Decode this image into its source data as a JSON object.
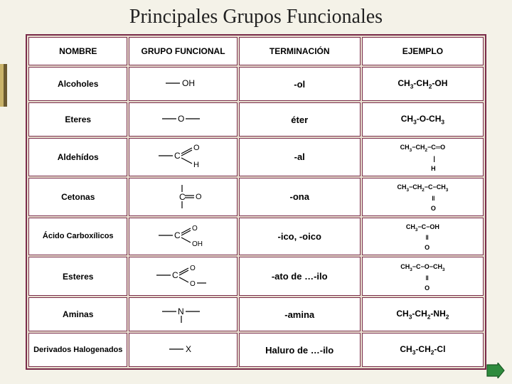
{
  "title": "Principales Grupos Funcionales",
  "colors": {
    "border": "#7a2c4a",
    "bg": "#f4f2e8",
    "cell_bg": "#ffffff",
    "table_bg": "#e8e0d0",
    "accent_light": "#c9b36a",
    "accent_dark": "#6b5a30",
    "nav_green": "#2e8b3d",
    "nav_border": "#1a5a24"
  },
  "headers": {
    "name": "NOMBRE",
    "group": "GRUPO FUNCIONAL",
    "term": "TERMINACIÓN",
    "example": "EJEMPLO"
  },
  "rows": [
    {
      "name": "Alcoholes",
      "func_svg": "oh",
      "term": "-ol",
      "example_html": "CH<span class='sub'>3</span>-CH<span class='sub'>2</span>-OH"
    },
    {
      "name": "Eteres",
      "func_svg": "ether",
      "term": "éter",
      "example_html": "CH<span class='sub'>3</span>-O-CH<span class='sub'>3</span>"
    },
    {
      "name": "Aldehídos",
      "func_svg": "aldehyde",
      "term": "-al",
      "example_html": "<span class='small'>CH<span class='sub'>3</span>−CH<span class='sub'>2</span>−C═O<br>&nbsp;&nbsp;&nbsp;&nbsp;&nbsp;&nbsp;&nbsp;&nbsp;&nbsp;&nbsp;&nbsp;&nbsp;&nbsp;|<br>&nbsp;&nbsp;&nbsp;&nbsp;&nbsp;&nbsp;&nbsp;&nbsp;&nbsp;&nbsp;&nbsp;&nbsp;H</span>"
    },
    {
      "name": "Cetonas",
      "func_svg": "ketone",
      "term": "-ona",
      "example_html": "<span class='small'>CH<span class='sub'>3</span>−CH<span class='sub'>2</span>−C−CH<span class='sub'>3</span><br>&nbsp;&nbsp;&nbsp;&nbsp;&nbsp;&nbsp;&nbsp;&nbsp;&nbsp;&nbsp;&nbsp;&nbsp;‖<br>&nbsp;&nbsp;&nbsp;&nbsp;&nbsp;&nbsp;&nbsp;&nbsp;&nbsp;&nbsp;&nbsp;&nbsp;O</span>"
    },
    {
      "name": "Ácido Carboxílicos",
      "func_svg": "acid",
      "term": "-ico, -oico",
      "example_html": "<span class='small'>CH<span class='sub'>3</span>−C−OH<br>&nbsp;&nbsp;&nbsp;&nbsp;&nbsp;‖<br>&nbsp;&nbsp;&nbsp;&nbsp;&nbsp;O</span>"
    },
    {
      "name": "Esteres",
      "func_svg": "ester",
      "term": "-ato de …-ilo",
      "example_html": "<span class='small'>CH<span class='sub'>3</span>−C−O−CH<span class='sub'>3</span><br>&nbsp;&nbsp;&nbsp;&nbsp;&nbsp;‖<br>&nbsp;&nbsp;&nbsp;&nbsp;&nbsp;O</span>"
    },
    {
      "name": "Aminas",
      "func_svg": "amine",
      "term": "-amina",
      "example_html": "CH<span class='sub'>3</span>-CH<span class='sub'>2</span>-NH<span class='sub'>2</span>"
    },
    {
      "name": "Derivados Halogenados",
      "func_svg": "halide",
      "term": "Haluro de …-ilo",
      "example_html": "CH<span class='sub'>3</span>-CH<span class='sub'>2</span>-Cl"
    }
  ],
  "func_svgs": {
    "oh": "<svg width='60' height='20'><line x1='5' y1='10' x2='25' y2='10' stroke='#000' stroke-width='1.2'/><text x='28' y='14' font-size='12' font-family='Arial'>OH</text></svg>",
    "ether": "<svg width='70' height='20'><line x1='5' y1='10' x2='25' y2='10' stroke='#000' stroke-width='1.2'/><text x='27' y='14' font-size='12' font-family='Arial'>O</text><line x1='38' y1='10' x2='58' y2='10' stroke='#000' stroke-width='1.2'/></svg>",
    "aldehyde": "<svg width='80' height='40'><line x1='5' y1='20' x2='25' y2='20' stroke='#000' stroke-width='1.2'/><text x='27' y='24' font-size='12' font-family='Arial'>C</text><line x1='37' y1='17' x2='52' y2='9' stroke='#000' stroke-width='1.2'/><line x1='37' y1='20' x2='52' y2='12' stroke='#000' stroke-width='1.2'/><text x='54' y='12' font-size='11' font-family='Arial'>O</text><line x1='37' y1='23' x2='52' y2='31' stroke='#000' stroke-width='1.2'/><text x='54' y='36' font-size='11' font-family='Arial'>H</text></svg>",
    "ketone": "<svg width='60' height='40'><line x1='28' y1='5' x2='28' y2='15' stroke='#000' stroke-width='1.2'/><text x='24' y='26' font-size='12' font-family='Arial'>C</text><line x1='32' y1='20' x2='45' y2='20' stroke='#000' stroke-width='1.2'/><line x1='32' y1='23' x2='45' y2='23' stroke='#000' stroke-width='1.2'/><text x='47' y='25' font-size='11' font-family='Arial'>O</text><line x1='28' y1='28' x2='28' y2='38' stroke='#000' stroke-width='1.2'/></svg>",
    "acid": "<svg width='80' height='40'><line x1='5' y1='20' x2='25' y2='20' stroke='#000' stroke-width='1.2'/><text x='27' y='24' font-size='12' font-family='Arial'>C</text><line x1='37' y1='17' x2='50' y2='10' stroke='#000' stroke-width='1.2'/><line x1='37' y1='20' x2='50' y2='13' stroke='#000' stroke-width='1.2'/><text x='52' y='13' font-size='10' font-family='Arial'>O</text><line x1='37' y1='23' x2='50' y2='30' stroke='#000' stroke-width='1.2'/><text x='52' y='35' font-size='10' font-family='Arial'>OH</text></svg>",
    "ester": "<svg width='85' height='42'><line x1='5' y1='21' x2='25' y2='21' stroke='#000' stroke-width='1.2'/><text x='27' y='25' font-size='12' font-family='Arial'>C</text><line x1='37' y1='18' x2='50' y2='11' stroke='#000' stroke-width='1.2'/><line x1='37' y1='21' x2='50' y2='14' stroke='#000' stroke-width='1.2'/><text x='52' y='14' font-size='10' font-family='Arial'>O</text><line x1='37' y1='24' x2='50' y2='31' stroke='#000' stroke-width='1.2'/><text x='52' y='36' font-size='10' font-family='Arial'>O</text><line x1='62' y1='32' x2='75' y2='32' stroke='#000' stroke-width='1.2'/></svg>",
    "amine": "<svg width='70' height='30'><line x1='5' y1='12' x2='25' y2='12' stroke='#000' stroke-width='1.2'/><text x='27' y='16' font-size='12' font-family='Arial'>N</text><line x1='38' y1='12' x2='58' y2='12' stroke='#000' stroke-width='1.2'/><line x1='32' y1='18' x2='32' y2='28' stroke='#000' stroke-width='1.2'/></svg>",
    "halide": "<svg width='50' height='20'><line x1='5' y1='10' x2='25' y2='10' stroke='#000' stroke-width='1.2'/><text x='28' y='14' font-size='12' font-family='Arial'>X</text></svg>"
  }
}
